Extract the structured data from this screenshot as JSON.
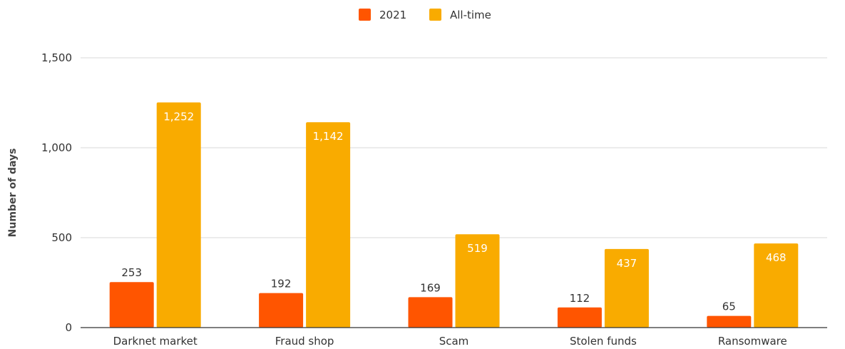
{
  "chart_data": {
    "type": "bar",
    "categories": [
      "Darknet market",
      "Fraud shop",
      "Scam",
      "Stolen funds",
      "Ransomware"
    ],
    "series": [
      {
        "name": "2021",
        "color": "#ff5500",
        "values": [
          253,
          192,
          169,
          112,
          65
        ]
      },
      {
        "name": "All-time",
        "color": "#f9ab00",
        "values": [
          1252,
          1142,
          519,
          437,
          468
        ]
      }
    ],
    "ylabel": "Number of days",
    "ylim": [
      0,
      1500
    ],
    "yticks": [
      0,
      500,
      1000,
      1500
    ],
    "ytick_labels": [
      "0",
      "500",
      "1,000",
      "1,500"
    ],
    "data_labels": [
      [
        "253",
        "192",
        "169",
        "112",
        "65"
      ],
      [
        "1,252",
        "1,142",
        "519",
        "437",
        "468"
      ]
    ],
    "legend": "top-center",
    "grid": true
  }
}
